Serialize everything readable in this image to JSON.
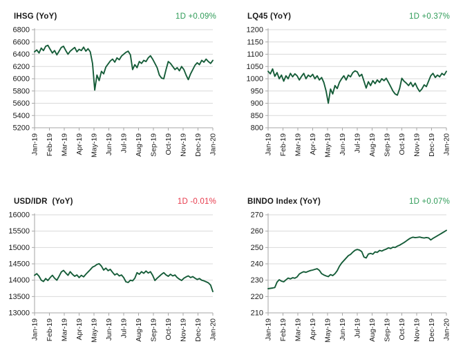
{
  "style": {
    "background": "#ffffff",
    "grid_color": "#d9d9d9",
    "axis_color": "#a6a6a6",
    "tick_label_color": "#1a1a1a",
    "positive_color": "#2e9b57",
    "negative_color": "#e7384a",
    "series_color": "#155c38"
  },
  "chart_data": [
    {
      "type": "line",
      "title": "IHSG (YoY)",
      "change_label": "1D +0.09%",
      "change_color": "#2e9b57",
      "line_color": "#155c38",
      "ylim": [
        5200,
        6800
      ],
      "ytick_step": 200,
      "x_labels": [
        "Jan-19",
        "Feb-19",
        "Mar-19",
        "Apr-19",
        "May-19",
        "Jun-19",
        "Jul-19",
        "Aug-19",
        "Sep-19",
        "Oct-19",
        "Nov-19",
        "Dec-19",
        "Jan-20"
      ],
      "values": [
        6440,
        6470,
        6420,
        6500,
        6460,
        6530,
        6545,
        6480,
        6420,
        6460,
        6390,
        6450,
        6510,
        6530,
        6460,
        6400,
        6450,
        6480,
        6510,
        6440,
        6480,
        6460,
        6515,
        6450,
        6490,
        6440,
        6250,
        5815,
        6060,
        5970,
        6120,
        6080,
        6190,
        6240,
        6290,
        6320,
        6270,
        6340,
        6310,
        6370,
        6400,
        6430,
        6450,
        6390,
        6150,
        6230,
        6180,
        6280,
        6250,
        6300,
        6280,
        6340,
        6375,
        6320,
        6250,
        6180,
        6060,
        6010,
        6000,
        6150,
        6280,
        6250,
        6200,
        6150,
        6180,
        6130,
        6200,
        6150,
        6060,
        5985,
        6080,
        6150,
        6220,
        6260,
        6230,
        6300,
        6270,
        6320,
        6280,
        6250,
        6300
      ]
    },
    {
      "type": "line",
      "title": "LQ45 (YoY)",
      "change_label": "1D +0.37%",
      "change_color": "#2e9b57",
      "line_color": "#155c38",
      "ylim": [
        800,
        1200
      ],
      "ytick_step": 50,
      "x_labels": [
        "Jan-19",
        "Feb-19",
        "Mar-19",
        "Apr-19",
        "May-19",
        "Jun-19",
        "Jul-19",
        "Aug-19",
        "Sep-19",
        "Oct-19",
        "Nov-19",
        "Dec-19",
        "Jan-20"
      ],
      "values": [
        1030,
        1020,
        1040,
        1010,
        1025,
        1000,
        1015,
        990,
        1012,
        1000,
        1022,
        1008,
        1020,
        1012,
        995,
        1010,
        1022,
        1000,
        1015,
        1008,
        1018,
        1000,
        1012,
        995,
        1005,
        985,
        950,
        900,
        958,
        938,
        972,
        960,
        985,
        1000,
        1012,
        995,
        1015,
        1008,
        1025,
        1032,
        1028,
        1010,
        1018,
        990,
        962,
        988,
        972,
        992,
        980,
        995,
        985,
        1000,
        992,
        1002,
        985,
        968,
        950,
        938,
        933,
        960,
        1002,
        990,
        982,
        972,
        985,
        968,
        982,
        962,
        948,
        958,
        975,
        968,
        990,
        1012,
        1022,
        1005,
        1015,
        1008,
        1022,
        1015,
        1030
      ]
    },
    {
      "type": "line",
      "title": "USD/IDR  (YoY)",
      "change_label": "1D -0.01%",
      "change_color": "#e7384a",
      "line_color": "#155c38",
      "ylim": [
        13000,
        16000
      ],
      "ytick_step": 500,
      "x_labels": [
        "Jan-19",
        "Feb-19",
        "Mar-19",
        "Apr-19",
        "May-19",
        "Jun-19",
        "Jul-19",
        "Aug-19",
        "Sep-19",
        "Oct-19",
        "Nov-19",
        "Dec-19",
        "Jan-20"
      ],
      "values": [
        14150,
        14200,
        14120,
        14000,
        13960,
        14050,
        13990,
        14080,
        14150,
        14060,
        14000,
        14120,
        14250,
        14300,
        14220,
        14150,
        14260,
        14180,
        14120,
        14160,
        14080,
        14150,
        14100,
        14180,
        14250,
        14320,
        14400,
        14430,
        14480,
        14505,
        14430,
        14310,
        14370,
        14290,
        14330,
        14240,
        14160,
        14200,
        14130,
        14160,
        14080,
        13950,
        13930,
        14000,
        13980,
        14060,
        14230,
        14180,
        14260,
        14210,
        14280,
        14220,
        14260,
        14150,
        13990,
        14060,
        14120,
        14180,
        14230,
        14160,
        14120,
        14180,
        14130,
        14160,
        14080,
        14030,
        13990,
        14060,
        14100,
        14130,
        14080,
        14110,
        14060,
        14020,
        14050,
        14000,
        13980,
        13950,
        13920,
        13850,
        13650
      ]
    },
    {
      "type": "line",
      "title": "BINDO Index (YoY)",
      "change_label": "1D +0.07%",
      "change_color": "#2e9b57",
      "line_color": "#155c38",
      "ylim": [
        210,
        270
      ],
      "ytick_step": 10,
      "x_labels": [
        "Jan-19",
        "Feb-19",
        "Mar-19",
        "Apr-19",
        "May-19",
        "Jun-19",
        "Jul-19",
        "Aug-19",
        "Sep-19",
        "Oct-19",
        "Nov-19",
        "Dec-19",
        "Jan-20"
      ],
      "values": [
        224.8,
        225.0,
        225.2,
        225.5,
        228.8,
        230.3,
        229.4,
        229.0,
        230.2,
        231.3,
        230.8,
        231.5,
        231.2,
        232.0,
        233.8,
        234.6,
        235.2,
        234.8,
        235.4,
        235.9,
        236.2,
        236.6,
        237.0,
        236.0,
        234.0,
        233.2,
        232.6,
        232.2,
        233.4,
        232.8,
        234.0,
        235.8,
        238.5,
        240.5,
        242.0,
        243.5,
        245.0,
        245.8,
        247.2,
        248.3,
        248.8,
        248.4,
        247.5,
        244.2,
        243.6,
        246.0,
        246.4,
        245.9,
        247.3,
        247.0,
        248.2,
        247.8,
        248.5,
        249.0,
        249.8,
        249.4,
        250.2,
        250.0,
        250.8,
        251.4,
        252.2,
        253.0,
        254.0,
        255.0,
        255.8,
        256.3,
        256.0,
        256.2,
        256.4,
        256.0,
        255.8,
        256.1,
        255.9,
        254.6,
        255.6,
        256.4,
        257.2,
        258.0,
        258.8,
        259.6,
        260.5
      ]
    }
  ]
}
